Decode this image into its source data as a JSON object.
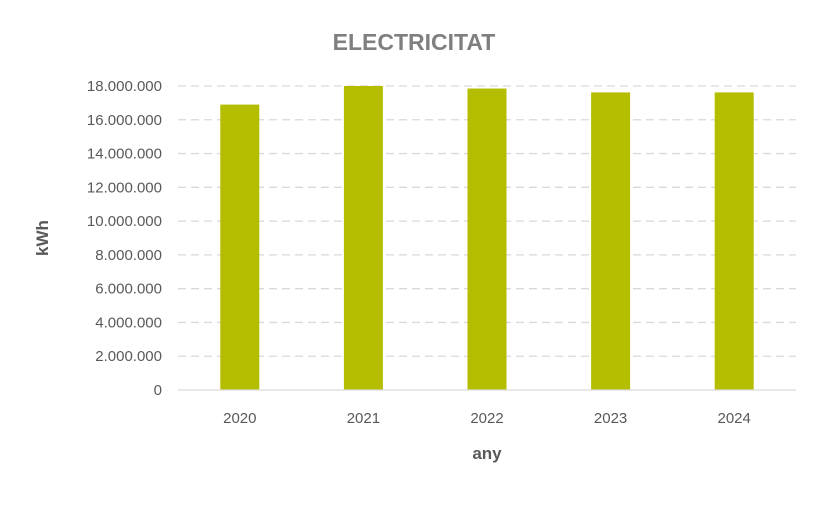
{
  "chart_data": {
    "type": "bar",
    "title": "ELECTRICITAT",
    "xlabel": "any",
    "ylabel": "kWh",
    "categories": [
      "2020",
      "2021",
      "2022",
      "2023",
      "2024"
    ],
    "values": [
      16900000,
      18000000,
      17850000,
      17620000,
      17620000
    ],
    "ylim": [
      0,
      18000000
    ],
    "yticks": [
      0,
      2000000,
      4000000,
      6000000,
      8000000,
      10000000,
      12000000,
      14000000,
      16000000,
      18000000
    ],
    "ytick_labels": [
      "0",
      "2.000.000",
      "4.000.000",
      "6.000.000",
      "8.000.000",
      "10.000.000",
      "12.000.000",
      "14.000.000",
      "16.000.000",
      "18.000.000"
    ],
    "grid": true,
    "legend": "none",
    "bar_color": "#b5bd00",
    "grid_color": "#d9d9d9"
  }
}
